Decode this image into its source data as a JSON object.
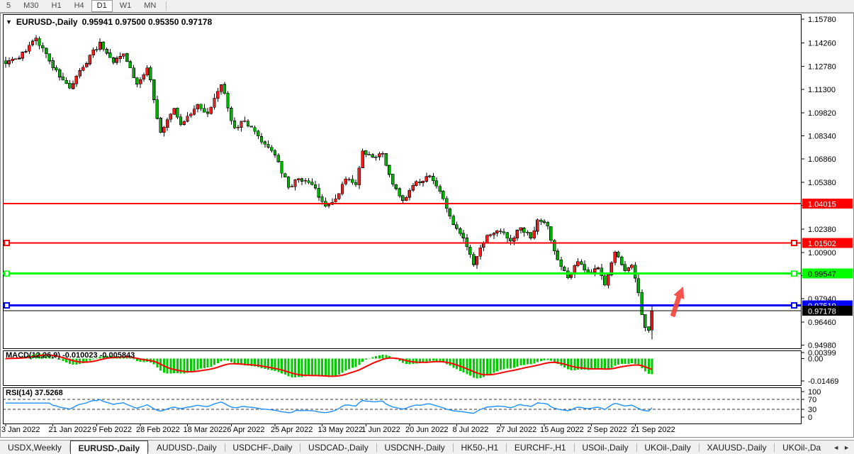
{
  "toolbar": {
    "timeframes": [
      "5",
      "M30",
      "H1",
      "H4",
      "D1",
      "W1",
      "MN"
    ],
    "active": "D1"
  },
  "chart": {
    "title_symbol": "EURUSD-,Daily",
    "title_ohlc": "0.95941 0.97500 0.95350 0.97178",
    "macd_title": "MACD(12,26,9) -0.010023 -0.005843",
    "rsi_title": "RSI(14) 37.5268",
    "title_marker": "▼",
    "colors": {
      "bull": "#ee1c1c",
      "bear": "#00b000",
      "macd_hist": "#00cc00",
      "macd_signal": "#ff0000",
      "rsi": "#1e90ff",
      "arrow": "#f4433c",
      "line_red": "#ff0000",
      "line_green": "#00ff00",
      "line_blue": "#0000ff",
      "price_line": "#000000",
      "axis_text": "#000000"
    }
  },
  "chart_data": {
    "type": "candlestick",
    "symbol": "EURUSD-",
    "timeframe": "Daily",
    "last_bar_ohlc": {
      "open": 0.95941,
      "high": 0.975,
      "low": 0.9535,
      "close": 0.97178
    },
    "y_axis": {
      "ticks": [
        "1.15780",
        "1.14260",
        "1.12780",
        "1.11300",
        "1.09820",
        "1.08340",
        "1.06860",
        "1.05380",
        "1.03900",
        "1.02380",
        "1.00900",
        "0.99420",
        "0.97940",
        "0.96460",
        "0.94980"
      ],
      "range": [
        0.9482,
        1.161
      ]
    },
    "x_axis": {
      "labels": [
        {
          "bar": 0,
          "text": "3 Jan 2022"
        },
        {
          "bar": 14,
          "text": "21 Jan 2022"
        },
        {
          "bar": 27,
          "text": "9 Feb 2022"
        },
        {
          "bar": 40,
          "text": "28 Feb 2022"
        },
        {
          "bar": 54,
          "text": "18 Mar 2022"
        },
        {
          "bar": 67,
          "text": "6 Apr 2022"
        },
        {
          "bar": 80,
          "text": "25 Apr 2022"
        },
        {
          "bar": 94,
          "text": "13 May 2022"
        },
        {
          "bar": 107,
          "text": "1 Jun 2022"
        },
        {
          "bar": 120,
          "text": "20 Jun 2022"
        },
        {
          "bar": 134,
          "text": "8 Jul 2022"
        },
        {
          "bar": 147,
          "text": "27 Jul 2022"
        },
        {
          "bar": 160,
          "text": "15 Aug 2022"
        },
        {
          "bar": 174,
          "text": "2 Sep 2022"
        },
        {
          "bar": 187,
          "text": "21 Sep 2022"
        }
      ]
    },
    "horizontal_lines": [
      {
        "price": 1.04015,
        "label": "1.04015",
        "color": "#ff0000",
        "width": 2,
        "handles": false,
        "text_color": "#ffffff"
      },
      {
        "price": 1.01502,
        "label": "1.01502",
        "color": "#ff0000",
        "width": 2,
        "handles": true,
        "text_color": "#ffffff"
      },
      {
        "price": 0.99547,
        "label": "0.99547",
        "color": "#00ff00",
        "width": 3,
        "handles": true,
        "text_color": "#000000"
      },
      {
        "price": 0.97519,
        "label": "0.97519",
        "color": "#0000ff",
        "width": 3,
        "handles": true,
        "text_color": "#ffffff"
      }
    ],
    "current_price": {
      "value": 0.97178,
      "label": "0.97178"
    },
    "arrow_annotation": {
      "shape": "up-right-arrow",
      "color": "#f4433c"
    },
    "bars": {
      "count": 193,
      "generated_from_anchors": true,
      "anchors": [
        [
          0,
          1.1295
        ],
        [
          4,
          1.133
        ],
        [
          9,
          1.1458
        ],
        [
          13,
          1.1312
        ],
        [
          19,
          1.1138
        ],
        [
          23,
          1.1272
        ],
        [
          28,
          1.1432
        ],
        [
          32,
          1.1302
        ],
        [
          35,
          1.1358
        ],
        [
          39,
          1.1165
        ],
        [
          42,
          1.1268
        ],
        [
          46,
          1.0855
        ],
        [
          50,
          1.101
        ],
        [
          52,
          1.0905
        ],
        [
          57,
          1.1035
        ],
        [
          60,
          1.0975
        ],
        [
          64,
          1.116
        ],
        [
          68,
          1.0885
        ],
        [
          71,
          1.093
        ],
        [
          76,
          1.0795
        ],
        [
          80,
          1.0712
        ],
        [
          84,
          1.0505
        ],
        [
          87,
          1.0562
        ],
        [
          91,
          1.0522
        ],
        [
          95,
          1.0385
        ],
        [
          98,
          1.0432
        ],
        [
          101,
          1.0558
        ],
        [
          104,
          1.0522
        ],
        [
          106,
          1.0738
        ],
        [
          109,
          1.0698
        ],
        [
          112,
          1.0722
        ],
        [
          115,
          1.0525
        ],
        [
          118,
          1.0422
        ],
        [
          121,
          1.0518
        ],
        [
          126,
          1.0578
        ],
        [
          130,
          1.0432
        ],
        [
          133,
          1.0268
        ],
        [
          136,
          1.0182
        ],
        [
          139,
          1.0012
        ],
        [
          143,
          1.0198
        ],
        [
          147,
          1.0222
        ],
        [
          150,
          1.0162
        ],
        [
          153,
          1.0248
        ],
        [
          156,
          1.0182
        ],
        [
          158,
          1.0298
        ],
        [
          161,
          1.0258
        ],
        [
          164,
          1.0042
        ],
        [
          167,
          0.9928
        ],
        [
          170,
          1.0032
        ],
        [
          173,
          0.9952
        ],
        [
          176,
          0.9992
        ],
        [
          178,
          0.9882
        ],
        [
          181,
          1.0092
        ],
        [
          184,
          0.9972
        ],
        [
          186,
          1.0008
        ],
        [
          188,
          0.9832
        ],
        [
          189,
          0.9692
        ],
        [
          190,
          0.9612
        ],
        [
          191,
          0.9593
        ],
        [
          192,
          0.97178
        ]
      ]
    },
    "indicators": {
      "macd": {
        "name": "MACD",
        "params": [
          12,
          26,
          9
        ],
        "value": -0.010023,
        "signal_value": -0.005843,
        "axis_labels": [
          "0.00399",
          "0.00",
          "-0.01469"
        ],
        "axis_values": [
          0.00399,
          0.0,
          -0.01469
        ]
      },
      "rsi": {
        "name": "RSI",
        "params": [
          14
        ],
        "value": 37.5268,
        "levels": [
          70,
          30
        ],
        "axis_labels": [
          "100",
          "70",
          "30",
          "0"
        ],
        "axis_values": [
          100,
          70,
          30,
          0
        ]
      }
    }
  },
  "tabs": {
    "items": [
      "USDX,Weekly",
      "EURUSD-,Daily",
      "AUDUSD-,Daily",
      "USDCHF-,Daily",
      "USDCAD-,Daily",
      "USDCNH-,Daily",
      "HK50-,H1",
      "EURCHF-,H1",
      "USOil-,Daily",
      "UKOil-,Daily",
      "XAUUSD-,Daily",
      "UKOil-,Da"
    ],
    "active": "EURUSD-,Daily",
    "scroll_left_icon": "◄",
    "scroll_right_icon": "►"
  }
}
